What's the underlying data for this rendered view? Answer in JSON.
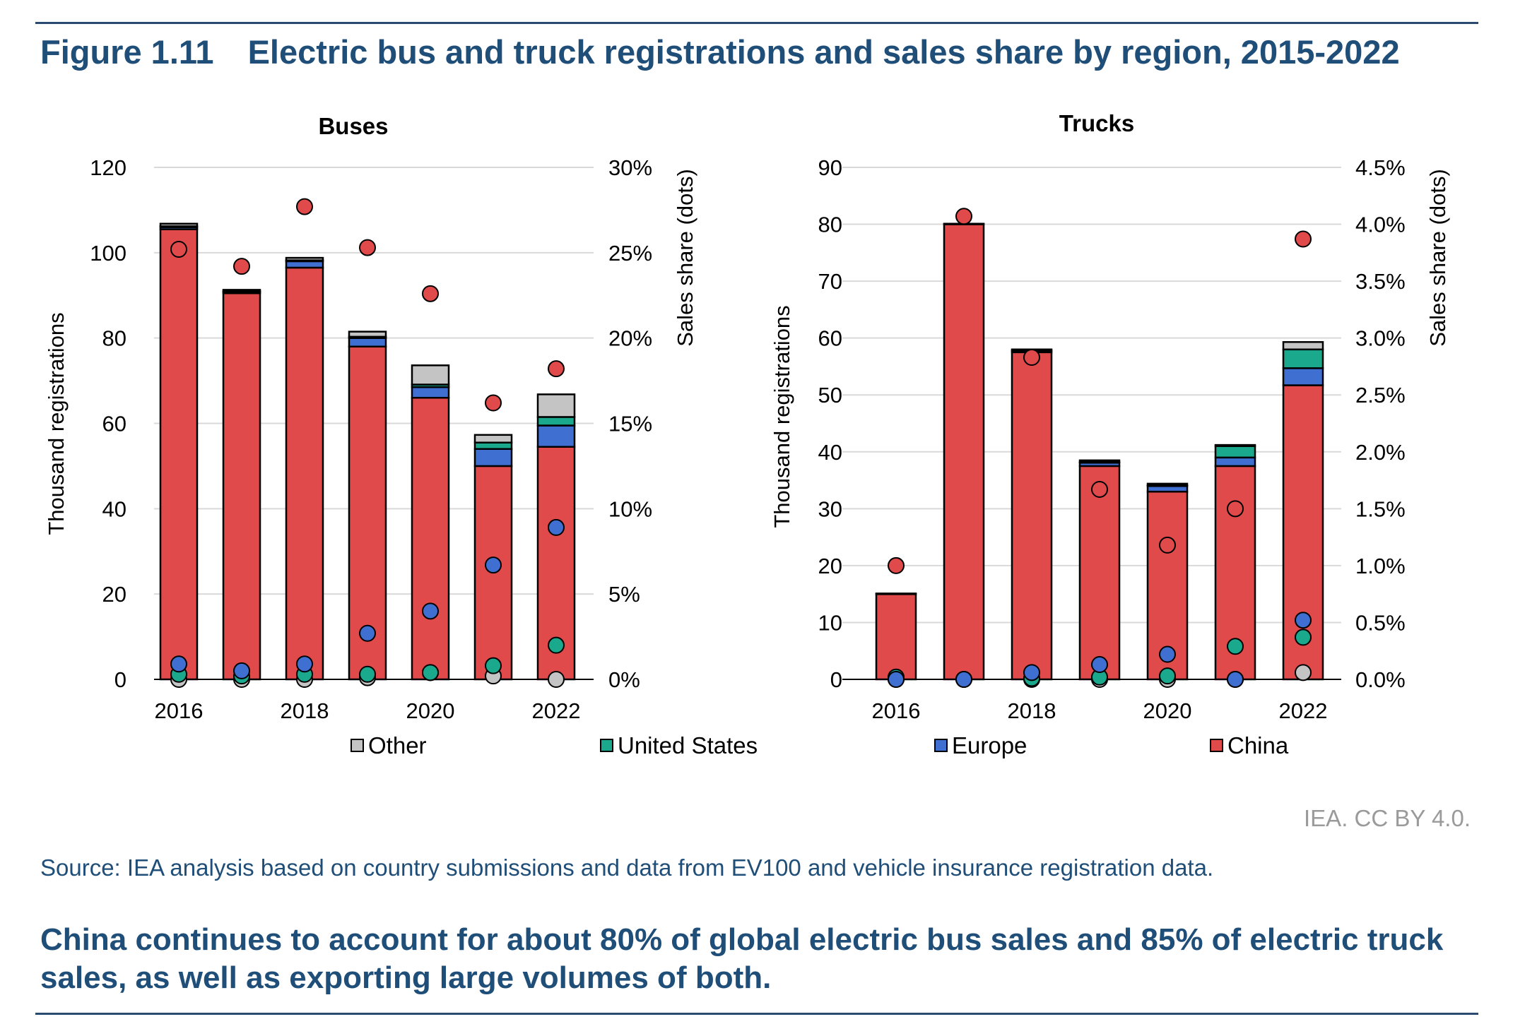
{
  "figure": {
    "number": "Figure 1.11",
    "title": "Electric bus and truck registrations and sales share by region, 2015-2022",
    "credit": "IEA. CC BY 4.0.",
    "source": "Source: IEA analysis based on country submissions and data from EV100 and vehicle insurance registration data.",
    "takeaway": "China continues to account for about 80% of global electric bus sales and 85% of electric truck sales, as well as exporting large volumes of both."
  },
  "colors": {
    "China": "#e04a4a",
    "Europe": "#3f6fd1",
    "United States": "#1aa98c",
    "Other": "#c4c4c4",
    "gridline": "#d9d9d9",
    "title": "#1f4e79"
  },
  "legend": [
    "Other",
    "United States",
    "Europe",
    "China"
  ],
  "chart_data": [
    {
      "type": "bar",
      "stacked": true,
      "overlay": "scatter",
      "title": "Buses",
      "ylabel": "Thousand registrations",
      "y2label": "Sales share (dots)",
      "ylim": [
        0,
        120
      ],
      "yticks": [
        "0",
        "20",
        "40",
        "60",
        "80",
        "100",
        "120"
      ],
      "y2lim": [
        0,
        30
      ],
      "y2ticks": [
        "0%",
        "5%",
        "10%",
        "15%",
        "20%",
        "25%",
        "30%"
      ],
      "categories": [
        "2016",
        "2017",
        "2018",
        "2019",
        "2020",
        "2021",
        "2022"
      ],
      "xticklabels": [
        "2016",
        "",
        "2018",
        "",
        "2020",
        "",
        "2022"
      ],
      "grid": true,
      "series": [
        {
          "name": "China",
          "values": [
            105.5,
            90.5,
            96.5,
            78.0,
            66.0,
            50.0,
            54.5
          ]
        },
        {
          "name": "Europe",
          "values": [
            0.5,
            0.3,
            1.5,
            2.0,
            2.5,
            4.0,
            5.0
          ]
        },
        {
          "name": "United States",
          "values": [
            0.2,
            0.2,
            0.2,
            0.3,
            0.6,
            1.5,
            2.0
          ]
        },
        {
          "name": "Other",
          "values": [
            0.6,
            0.3,
            0.6,
            1.2,
            4.5,
            1.8,
            5.3
          ]
        }
      ],
      "share_series": [
        {
          "name": "China",
          "values": [
            25.2,
            24.2,
            27.7,
            25.3,
            22.6,
            16.2,
            18.2
          ]
        },
        {
          "name": "Europe",
          "values": [
            0.9,
            0.5,
            0.9,
            2.7,
            4.0,
            6.7,
            8.9
          ]
        },
        {
          "name": "United States",
          "values": [
            0.3,
            0.2,
            0.3,
            0.3,
            0.4,
            0.8,
            2.0
          ]
        },
        {
          "name": "Other",
          "values": [
            0.0,
            0.0,
            0.0,
            0.1,
            0.4,
            0.2,
            0.0
          ]
        }
      ]
    },
    {
      "type": "bar",
      "stacked": true,
      "overlay": "scatter",
      "title": "Trucks",
      "ylabel": "Thousand registrations",
      "y2label": "Sales share (dots)",
      "ylim": [
        0,
        90
      ],
      "yticks": [
        "0",
        "10",
        "20",
        "30",
        "40",
        "50",
        "60",
        "70",
        "80",
        "90"
      ],
      "y2lim": [
        0,
        4.5
      ],
      "y2ticks": [
        "0.0%",
        "0.5%",
        "1.0%",
        "1.5%",
        "2.0%",
        "2.5%",
        "3.0%",
        "3.5%",
        "4.0%",
        "4.5%"
      ],
      "categories": [
        "2016",
        "2017",
        "2018",
        "2019",
        "2020",
        "2021",
        "2022"
      ],
      "xticklabels": [
        "2016",
        "",
        "2018",
        "",
        "2020",
        "",
        "2022"
      ],
      "grid": true,
      "series": [
        {
          "name": "China",
          "values": [
            15.0,
            80.0,
            57.5,
            37.5,
            33.0,
            37.5,
            51.7
          ]
        },
        {
          "name": "Europe",
          "values": [
            0.1,
            0.1,
            0.3,
            0.6,
            1.0,
            1.5,
            3.0
          ]
        },
        {
          "name": "United States",
          "values": [
            0.0,
            0.0,
            0.0,
            0.1,
            0.1,
            2.0,
            3.3
          ]
        },
        {
          "name": "Other",
          "values": [
            0.0,
            0.0,
            0.2,
            0.3,
            0.3,
            0.2,
            1.3
          ]
        }
      ],
      "share_series": [
        {
          "name": "China",
          "values": [
            1.0,
            4.07,
            2.83,
            1.67,
            1.18,
            1.5,
            3.87
          ]
        },
        {
          "name": "Europe",
          "values": [
            0.0,
            0.0,
            0.06,
            0.13,
            0.22,
            0.0,
            0.52
          ]
        },
        {
          "name": "United States",
          "values": [
            0.02,
            0.0,
            0.01,
            0.02,
            0.03,
            0.29,
            0.37
          ]
        },
        {
          "name": "Other",
          "values": [
            0.0,
            0.0,
            0.0,
            0.0,
            0.0,
            0.0,
            0.06
          ]
        }
      ]
    }
  ]
}
